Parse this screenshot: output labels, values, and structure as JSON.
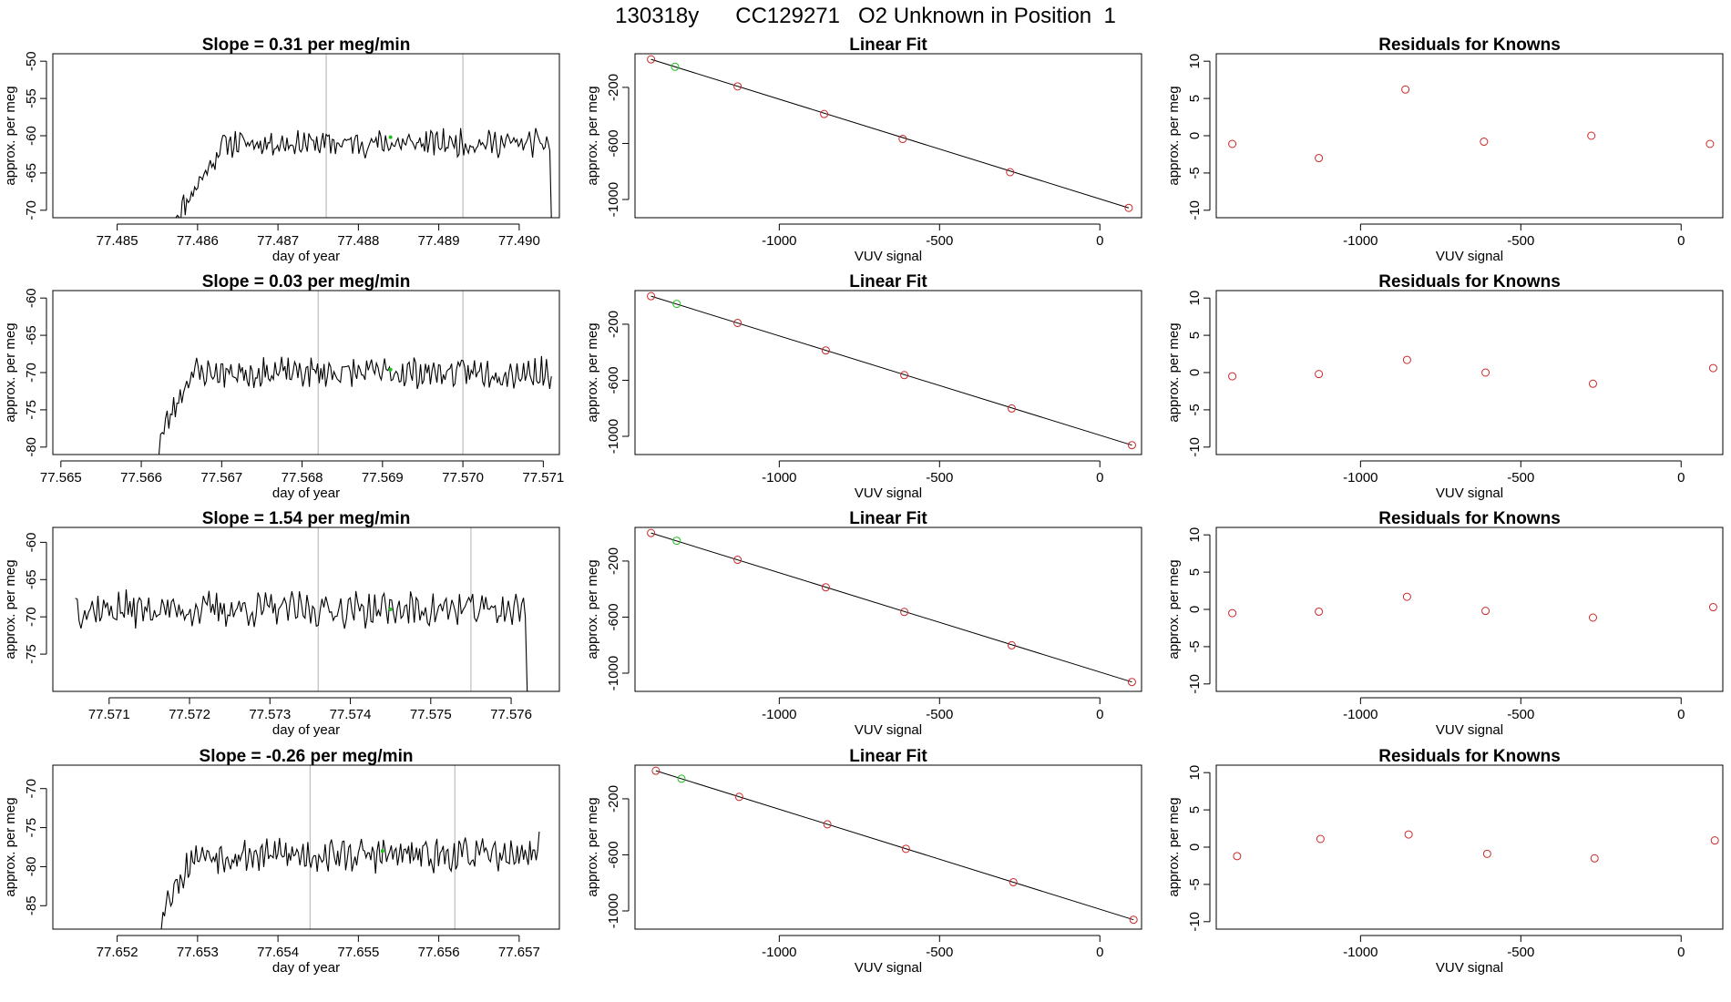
{
  "header": {
    "title": "130318y      CC129271   O2 Unknown in Position  1"
  },
  "colors": {
    "trace": "#000000",
    "reference_line": "#bebebe",
    "known_point": "#cd2626",
    "unknown_point": "#1fbf1f",
    "fit_line": "#000000"
  },
  "chart_data": [
    {
      "type": "line",
      "title": "Slope =  0.31  per meg/min",
      "xlabel": "day of year",
      "ylabel": "approx. per meg",
      "xlim": [
        77.4842,
        77.4905
      ],
      "ylim": [
        -71,
        -49
      ],
      "xticks": [
        77.485,
        77.486,
        77.487,
        77.488,
        77.489,
        77.49
      ],
      "xtick_labels": [
        "77.485",
        "77.486",
        "77.487",
        "77.488",
        "77.489",
        "77.490"
      ],
      "yticks": [
        -50,
        -55,
        -60,
        -65,
        -70
      ],
      "ytick_labels": [
        "-50",
        "-55",
        "-60",
        "-65",
        "-70"
      ],
      "vlines": [
        77.4876,
        77.4893
      ],
      "x_start": 77.48573,
      "x_end": 77.4904,
      "y_start": -71,
      "y_end": -71,
      "baseline": -61.0,
      "marker": {
        "x": 77.4884,
        "y": -60.2
      },
      "rise": 0.0006,
      "rise_depth": 10,
      "noise": 1.4,
      "seed": 11
    },
    {
      "type": "scatter",
      "title": "Linear Fit",
      "xlabel": "VUV signal",
      "ylabel": "approx. per meg",
      "xlim": [
        -1450,
        130
      ],
      "ylim": [
        -1130,
        40
      ],
      "xticks": [
        -1000,
        -500,
        0
      ],
      "xtick_labels": [
        "-1000",
        "-500",
        "0"
      ],
      "yticks": [
        -200,
        -600,
        -1000
      ],
      "ytick_labels": [
        "-200",
        "-600",
        "-1000"
      ],
      "fit_line": [
        [
          -1400,
          0
        ],
        [
          90,
          -1060
        ]
      ],
      "points": [
        [
          -1400,
          0
        ],
        [
          -1130,
          -193
        ],
        [
          -860,
          -390
        ],
        [
          -615,
          -568
        ],
        [
          -280,
          -805
        ],
        [
          90,
          -1060
        ]
      ],
      "unknowns": [
        [
          -1325,
          -53
        ]
      ]
    },
    {
      "type": "scatter",
      "title": "Residuals for Knowns",
      "xlabel": "VUV signal",
      "ylabel": "approx. per meg",
      "xlim": [
        -1450,
        130
      ],
      "ylim": [
        -11,
        11
      ],
      "xticks": [
        -1000,
        -500,
        0
      ],
      "xtick_labels": [
        "-1000",
        "-500",
        "0"
      ],
      "yticks": [
        10,
        5,
        0,
        -5,
        -10
      ],
      "ytick_labels": [
        "10",
        "5",
        "0",
        "-5",
        "-10"
      ],
      "points": [
        [
          -1400,
          -1.1
        ],
        [
          -1130,
          -3.0
        ],
        [
          -860,
          6.2
        ],
        [
          -615,
          -0.8
        ],
        [
          -280,
          0.0
        ],
        [
          90,
          -1.1
        ]
      ]
    },
    {
      "type": "line",
      "title": "Slope =  0.03  per meg/min",
      "xlabel": "day of year",
      "ylabel": "approx. per meg",
      "xlim": [
        77.5649,
        77.5712
      ],
      "ylim": [
        -81,
        -59
      ],
      "xticks": [
        77.565,
        77.566,
        77.567,
        77.568,
        77.569,
        77.57,
        77.571
      ],
      "xtick_labels": [
        "77.565",
        "77.566",
        "77.567",
        "77.568",
        "77.569",
        "77.570",
        "77.571"
      ],
      "yticks": [
        -60,
        -65,
        -70,
        -75,
        -80
      ],
      "ytick_labels": [
        "-60",
        "-65",
        "-70",
        "-75",
        "-80"
      ],
      "vlines": [
        77.5682,
        77.57
      ],
      "x_start": 77.56622,
      "x_end": 77.5711,
      "y_start": -81,
      "y_end": -70.5,
      "baseline": -70.0,
      "marker": {
        "x": 77.5691,
        "y": -69.6
      },
      "rise": 0.0004,
      "rise_depth": 9,
      "noise": 1.6,
      "seed": 23
    },
    {
      "type": "scatter",
      "title": "Linear Fit",
      "xlabel": "VUV signal",
      "ylabel": "approx. per meg",
      "xlim": [
        -1450,
        130
      ],
      "ylim": [
        -1130,
        40
      ],
      "xticks": [
        -1000,
        -500,
        0
      ],
      "xtick_labels": [
        "-1000",
        "-500",
        "0"
      ],
      "yticks": [
        -200,
        -600,
        -1000
      ],
      "ytick_labels": [
        "-200",
        "-600",
        "-1000"
      ],
      "fit_line": [
        [
          -1400,
          0
        ],
        [
          100,
          -1063
        ]
      ],
      "points": [
        [
          -1400,
          0
        ],
        [
          -1130,
          -191
        ],
        [
          -855,
          -387
        ],
        [
          -610,
          -563
        ],
        [
          -275,
          -801
        ],
        [
          100,
          -1063
        ]
      ],
      "unknowns": [
        [
          -1320,
          -55
        ]
      ]
    },
    {
      "type": "scatter",
      "title": "Residuals for Knowns",
      "xlabel": "VUV signal",
      "ylabel": "approx. per meg",
      "xlim": [
        -1450,
        130
      ],
      "ylim": [
        -11,
        11
      ],
      "xticks": [
        -1000,
        -500,
        0
      ],
      "xtick_labels": [
        "-1000",
        "-500",
        "0"
      ],
      "yticks": [
        10,
        5,
        0,
        -5,
        -10
      ],
      "ytick_labels": [
        "10",
        "5",
        "0",
        "-5",
        "-10"
      ],
      "points": [
        [
          -1400,
          -0.5
        ],
        [
          -1130,
          -0.2
        ],
        [
          -855,
          1.7
        ],
        [
          -610,
          0.0
        ],
        [
          -275,
          -1.5
        ],
        [
          100,
          0.6
        ]
      ]
    },
    {
      "type": "line",
      "title": "Slope =  1.54  per meg/min",
      "xlabel": "day of year",
      "ylabel": "approx. per meg",
      "xlim": [
        77.5703,
        77.5766
      ],
      "ylim": [
        -80,
        -58
      ],
      "xticks": [
        77.571,
        77.572,
        77.573,
        77.574,
        77.575,
        77.576
      ],
      "xtick_labels": [
        "77.571",
        "77.572",
        "77.573",
        "77.574",
        "77.575",
        "77.576"
      ],
      "yticks": [
        -60,
        -65,
        -70,
        -75
      ],
      "ytick_labels": [
        "-60",
        "-65",
        "-70",
        "-75"
      ],
      "vlines": [
        77.5736,
        77.5755
      ],
      "x_start": 77.57058,
      "x_end": 77.5762,
      "y_start": -67.5,
      "y_end": -80,
      "baseline": -69.0,
      "marker": {
        "x": 77.5745,
        "y": -69.0
      },
      "rise": 0,
      "rise_depth": 0,
      "noise": 1.9,
      "seed": 37
    },
    {
      "type": "scatter",
      "title": "Linear Fit",
      "xlabel": "VUV signal",
      "ylabel": "approx. per meg",
      "xlim": [
        -1450,
        130
      ],
      "ylim": [
        -1130,
        40
      ],
      "xticks": [
        -1000,
        -500,
        0
      ],
      "xtick_labels": [
        "-1000",
        "-500",
        "0"
      ],
      "yticks": [
        -200,
        -600,
        -1000
      ],
      "ytick_labels": [
        "-200",
        "-600",
        "-1000"
      ],
      "fit_line": [
        [
          -1400,
          0
        ],
        [
          100,
          -1063
        ]
      ],
      "points": [
        [
          -1400,
          0
        ],
        [
          -1130,
          -191
        ],
        [
          -855,
          -387
        ],
        [
          -610,
          -563
        ],
        [
          -275,
          -801
        ],
        [
          100,
          -1063
        ]
      ],
      "unknowns": [
        [
          -1320,
          -55
        ]
      ]
    },
    {
      "type": "scatter",
      "title": "Residuals for Knowns",
      "xlabel": "VUV signal",
      "ylabel": "approx. per meg",
      "xlim": [
        -1450,
        130
      ],
      "ylim": [
        -11,
        11
      ],
      "xticks": [
        -1000,
        -500,
        0
      ],
      "xtick_labels": [
        "-1000",
        "-500",
        "0"
      ],
      "yticks": [
        10,
        5,
        0,
        -5,
        -10
      ],
      "ytick_labels": [
        "10",
        "5",
        "0",
        "-5",
        "-10"
      ],
      "points": [
        [
          -1400,
          -0.5
        ],
        [
          -1130,
          -0.3
        ],
        [
          -855,
          1.7
        ],
        [
          -610,
          -0.2
        ],
        [
          -275,
          -1.1
        ],
        [
          100,
          0.3
        ]
      ]
    },
    {
      "type": "line",
      "title": "Slope =  -0.26  per meg/min",
      "xlabel": "day of year",
      "ylabel": "approx. per meg",
      "xlim": [
        77.6512,
        77.6575
      ],
      "ylim": [
        -88,
        -67
      ],
      "xticks": [
        77.652,
        77.653,
        77.654,
        77.655,
        77.656,
        77.657
      ],
      "xtick_labels": [
        "77.652",
        "77.653",
        "77.654",
        "77.655",
        "77.656",
        "77.657"
      ],
      "yticks": [
        -70,
        -75,
        -80,
        -85
      ],
      "ytick_labels": [
        "-70",
        "-75",
        "-80",
        "-85"
      ],
      "vlines": [
        77.6544,
        77.6562
      ],
      "x_start": 77.65255,
      "x_end": 77.65725,
      "y_start": -88,
      "y_end": -75.5,
      "baseline": -78.5,
      "marker": {
        "x": 77.6553,
        "y": -78.0
      },
      "rise": 0.0004,
      "rise_depth": 7,
      "noise": 1.7,
      "seed": 53
    },
    {
      "type": "scatter",
      "title": "Linear Fit",
      "xlabel": "VUV signal",
      "ylabel": "approx. per meg",
      "xlim": [
        -1450,
        130
      ],
      "ylim": [
        -1130,
        40
      ],
      "xticks": [
        -1000,
        -500,
        0
      ],
      "xtick_labels": [
        "-1000",
        "-500",
        "0"
      ],
      "yticks": [
        -200,
        -600,
        -1000
      ],
      "ytick_labels": [
        "-200",
        "-600",
        "-1000"
      ],
      "fit_line": [
        [
          -1385,
          0
        ],
        [
          105,
          -1063
        ]
      ],
      "points": [
        [
          -1385,
          0
        ],
        [
          -1125,
          -186
        ],
        [
          -850,
          -382
        ],
        [
          -605,
          -557
        ],
        [
          -270,
          -795
        ],
        [
          105,
          -1063
        ]
      ],
      "unknowns": [
        [
          -1305,
          -57
        ]
      ]
    },
    {
      "type": "scatter",
      "title": "Residuals for Knowns",
      "xlabel": "VUV signal",
      "ylabel": "approx. per meg",
      "xlim": [
        -1450,
        130
      ],
      "ylim": [
        -11,
        11
      ],
      "xticks": [
        -1000,
        -500,
        0
      ],
      "xtick_labels": [
        "-1000",
        "-500",
        "0"
      ],
      "yticks": [
        10,
        5,
        0,
        -5,
        -10
      ],
      "ytick_labels": [
        "10",
        "5",
        "0",
        "-5",
        "-10"
      ],
      "points": [
        [
          -1385,
          -1.2
        ],
        [
          -1125,
          1.1
        ],
        [
          -850,
          1.7
        ],
        [
          -605,
          -0.9
        ],
        [
          -270,
          -1.5
        ],
        [
          105,
          0.9
        ]
      ]
    }
  ]
}
